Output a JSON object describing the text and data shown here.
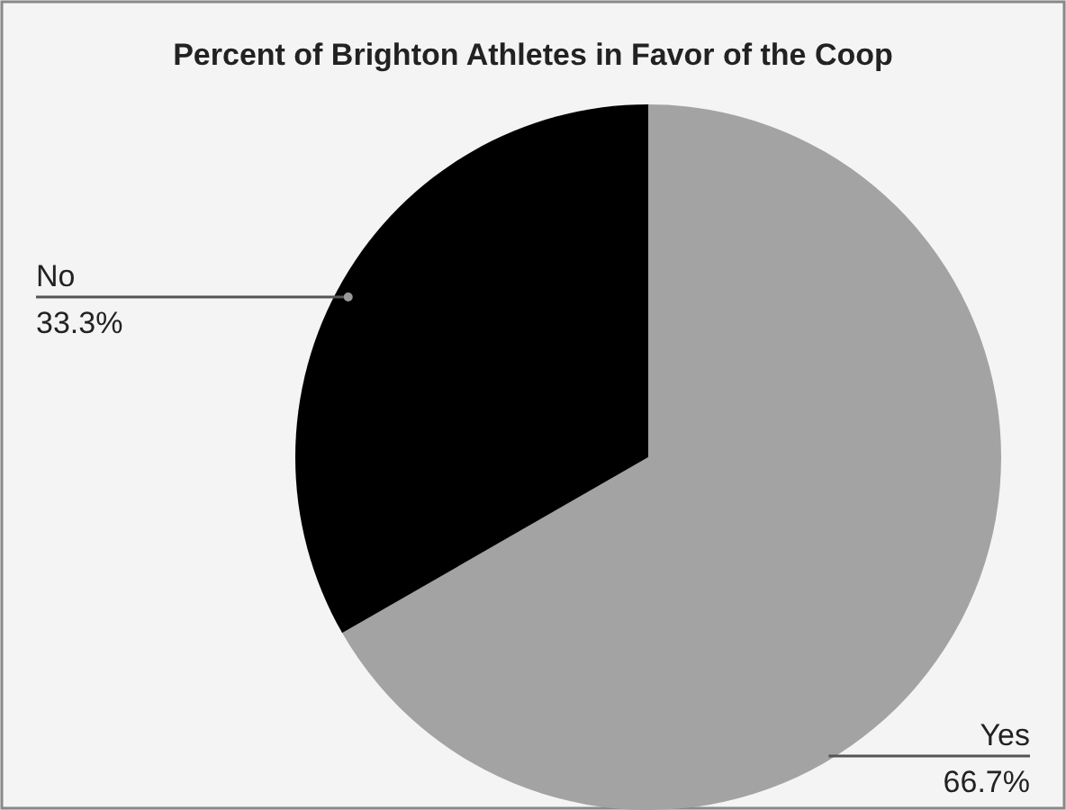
{
  "chart_data": {
    "type": "pie",
    "title": "Percent of Brighton Athletes in Favor of the Coop",
    "categories": [
      "Yes",
      "No"
    ],
    "values": [
      66.7,
      33.3
    ],
    "colors": [
      "#a3a3a3",
      "#000000"
    ],
    "value_labels": [
      "66.7%",
      "33.3%"
    ]
  }
}
